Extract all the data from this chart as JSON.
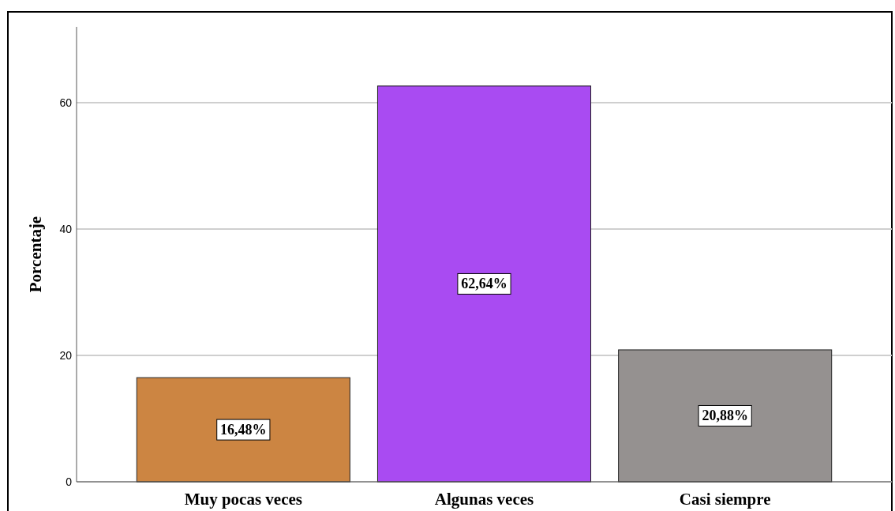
{
  "chart_data": {
    "type": "bar",
    "ylabel": "Porcentaje",
    "categories": [
      "Muy pocas veces",
      "Algunas veces",
      "Casi siempre"
    ],
    "values": [
      16.48,
      62.64,
      20.88
    ],
    "colors": [
      "#cc8542",
      "#a94bf2",
      "#959190"
    ],
    "value_labels": [
      "16,48%",
      "62,64%",
      "20,88%"
    ],
    "ylim": [
      0,
      72
    ],
    "yticks": [
      0,
      20,
      40,
      60
    ],
    "grid": "y"
  }
}
